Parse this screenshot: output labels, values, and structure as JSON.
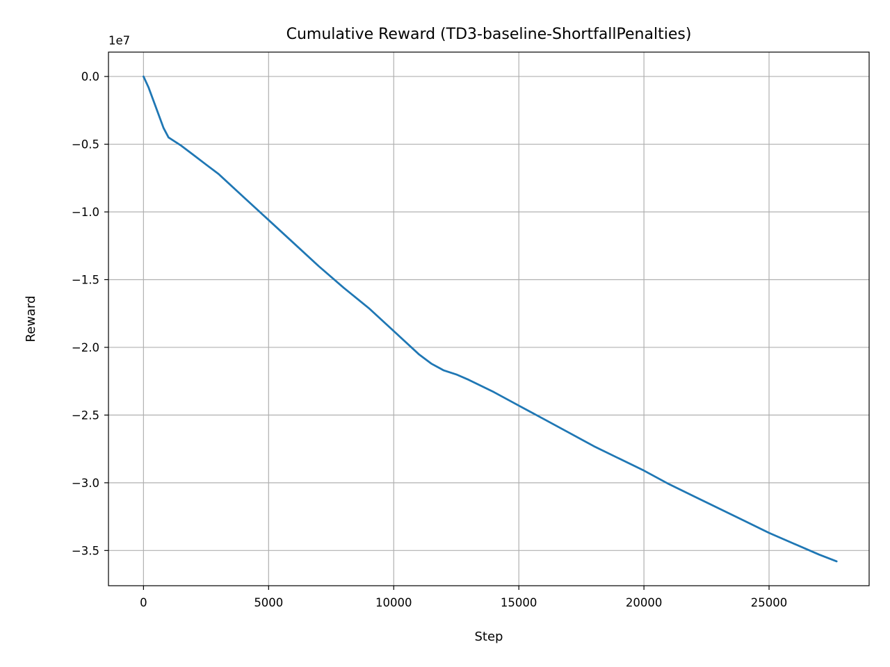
{
  "chart_data": {
    "type": "line",
    "title": "Cumulative Reward (TD3-baseline-ShortfallPenalties)",
    "xlabel": "Step",
    "ylabel": "Reward",
    "y_offset_label": "1e7",
    "xlim": [
      -1400,
      29000
    ],
    "ylim": [
      -37.6,
      1.8
    ],
    "y_scale_note": "values in units of 1e6 (axis shown as 1e7 multiplier)",
    "x_ticks": [
      0,
      5000,
      10000,
      15000,
      20000,
      25000
    ],
    "x_tick_labels": [
      "0",
      "5000",
      "10000",
      "15000",
      "20000",
      "25000"
    ],
    "y_ticks": [
      0.0,
      -5.0,
      -10.0,
      -15.0,
      -20.0,
      -25.0,
      -30.0,
      -35.0
    ],
    "y_tick_labels": [
      "0.0",
      "−0.5",
      "−1.0",
      "−1.5",
      "−2.0",
      "−2.5",
      "−3.0",
      "−3.5"
    ],
    "grid": true,
    "series": [
      {
        "color": "#1f77b4",
        "x": [
          0,
          200,
          500,
          800,
          1000,
          1500,
          2000,
          2500,
          3000,
          4000,
          5000,
          6000,
          7000,
          8000,
          9000,
          10000,
          11000,
          11500,
          12000,
          12500,
          13000,
          14000,
          15000,
          16000,
          17000,
          18000,
          19000,
          20000,
          21000,
          22000,
          23000,
          24000,
          25000,
          26000,
          27000,
          27700
        ],
        "values": [
          0.0,
          -0.8,
          -2.3,
          -3.8,
          -4.5,
          -5.1,
          -5.8,
          -6.5,
          -7.2,
          -8.9,
          -10.6,
          -12.3,
          -14.0,
          -15.6,
          -17.1,
          -18.8,
          -20.5,
          -21.2,
          -21.7,
          -22.0,
          -22.4,
          -23.3,
          -24.3,
          -25.3,
          -26.3,
          -27.3,
          -28.2,
          -29.1,
          -30.1,
          -31.0,
          -31.9,
          -32.8,
          -33.7,
          -34.5,
          -35.3,
          -35.8
        ]
      }
    ]
  }
}
